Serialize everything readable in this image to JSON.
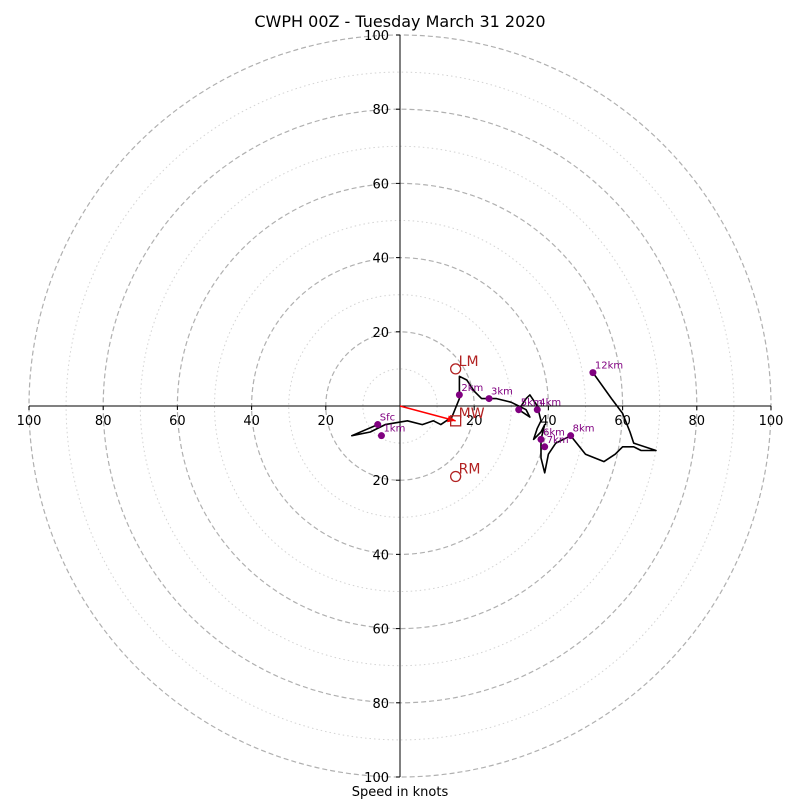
{
  "chart_data": {
    "type": "hodograph",
    "title": "CWPH 00Z - Tuesday March 31 2020",
    "xlabel": "Speed in knots",
    "axis_range": [
      -100,
      100
    ],
    "rings_major": [
      20,
      40,
      60,
      80,
      100
    ],
    "rings_minor": [
      10,
      30,
      50,
      70,
      90
    ],
    "tick_labels": {
      "x": [
        "100",
        "80",
        "60",
        "40",
        "20",
        "20",
        "40",
        "60",
        "80",
        "100"
      ],
      "y": [
        "100",
        "80",
        "60",
        "40",
        "20",
        "20",
        "40",
        "60",
        "80",
        "100"
      ]
    },
    "tick_values": [
      -100,
      -80,
      -60,
      -40,
      -20,
      20,
      40,
      60,
      80,
      100
    ],
    "hodograph_trace": [
      [
        -6,
        -5
      ],
      [
        -13,
        -8
      ],
      [
        -8,
        -7
      ],
      [
        -4,
        -5
      ],
      [
        2,
        -4
      ],
      [
        6,
        -5
      ],
      [
        9,
        -4
      ],
      [
        11,
        -5
      ],
      [
        14,
        -3
      ],
      [
        16,
        2
      ],
      [
        16,
        8
      ],
      [
        18,
        7
      ],
      [
        20,
        4
      ],
      [
        22,
        2
      ],
      [
        26,
        2
      ],
      [
        30,
        1
      ],
      [
        32,
        0
      ],
      [
        34,
        -1
      ],
      [
        35,
        -3
      ],
      [
        32,
        -1
      ],
      [
        34,
        2
      ],
      [
        35,
        3
      ],
      [
        37,
        0
      ],
      [
        38,
        -4
      ],
      [
        37,
        -6
      ],
      [
        36,
        -9
      ],
      [
        38,
        -7
      ],
      [
        39,
        -5
      ],
      [
        38,
        -9
      ],
      [
        38,
        -14
      ],
      [
        39,
        -18
      ],
      [
        40,
        -13
      ],
      [
        42,
        -10
      ],
      [
        46,
        -8
      ],
      [
        50,
        -13
      ],
      [
        55,
        -15
      ],
      [
        58,
        -13
      ],
      [
        60,
        -11
      ],
      [
        63,
        -11
      ],
      [
        65,
        -12
      ],
      [
        69,
        -12
      ],
      [
        63,
        -10
      ],
      [
        62,
        -7
      ],
      [
        60,
        -2
      ],
      [
        57,
        2
      ],
      [
        52,
        9
      ]
    ],
    "height_points": [
      {
        "label": "Sfc",
        "u": -6,
        "v": -5
      },
      {
        "label": "1km",
        "u": -5,
        "v": -8
      },
      {
        "label": "2km",
        "u": 16,
        "v": 3
      },
      {
        "label": "3km",
        "u": 24,
        "v": 2
      },
      {
        "label": "4km",
        "u": 37,
        "v": -1
      },
      {
        "label": "5km",
        "u": 32,
        "v": -1
      },
      {
        "label": "6km",
        "u": 38,
        "v": -9
      },
      {
        "label": "7km",
        "u": 39,
        "v": -11
      },
      {
        "label": "8km",
        "u": 46,
        "v": -8
      },
      {
        "label": "12km",
        "u": 52,
        "v": 9
      }
    ],
    "motion_markers": [
      {
        "label": "LM",
        "u": 15,
        "v": 10,
        "marker": "circle"
      },
      {
        "label": "MW",
        "u": 15,
        "v": -4,
        "marker": "square"
      },
      {
        "label": "RM",
        "u": 15,
        "v": -19,
        "marker": "circle"
      }
    ],
    "mean_wind_arrow": {
      "u": 15,
      "v": -4
    },
    "colors": {
      "trace": "#000000",
      "points": "#800080",
      "markers": "#b22222",
      "arrow": "#ff0000",
      "rings_major": "#b0b0b0",
      "rings_minor": "#d3d3d3"
    }
  }
}
